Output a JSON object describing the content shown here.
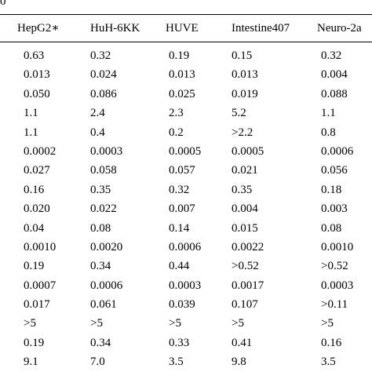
{
  "table": {
    "corner_fragment": "0",
    "columns": [
      "HepG2∗",
      "HuH-6KK",
      "HUVE",
      "Intestine407",
      "Neuro-2a"
    ],
    "rows": [
      [
        "0.63",
        "0.32",
        "0.19",
        "0.15",
        "0.32"
      ],
      [
        "0.013",
        "0.024",
        "0.013",
        "0.013",
        "0.004"
      ],
      [
        "0.050",
        "0.086",
        "0.025",
        "0.019",
        "0.088"
      ],
      [
        "1.1",
        "2.4",
        "2.3",
        "5.2",
        "1.1"
      ],
      [
        "1.1",
        "0.4",
        "0.2",
        ">2.2",
        "0.8"
      ],
      [
        "0.0002",
        "0.0003",
        "0.0005",
        "0.0005",
        "0.0006"
      ],
      [
        "0.027",
        "0.058",
        "0.057",
        "0.021",
        "0.056"
      ],
      [
        "0.16",
        "0.35",
        "0.32",
        "0.35",
        "0.18"
      ],
      [
        "0.020",
        "0.022",
        "0.007",
        "0.004",
        "0.003"
      ],
      [
        "0.04",
        "0.08",
        "0.14",
        "0.015",
        "0.08"
      ],
      [
        "0.0010",
        "0.0020",
        "0.0006",
        "0.0022",
        "0.0010"
      ],
      [
        "0.19",
        "0.34",
        "0.44",
        ">0.52",
        ">0.52"
      ],
      [
        "0.0007",
        "0.0006",
        "0.0003",
        "0.0017",
        "0.0003"
      ],
      [
        "0.017",
        "0.061",
        "0.039",
        "0.107",
        ">0.11"
      ],
      [
        ">5",
        ">5",
        ">5",
        ">5",
        ">5"
      ],
      [
        "0.19",
        "0.34",
        "0.33",
        "0.41",
        "0.16"
      ],
      [
        "9.1",
        "7.0",
        "3.5",
        "9.8",
        "3.5"
      ]
    ]
  }
}
